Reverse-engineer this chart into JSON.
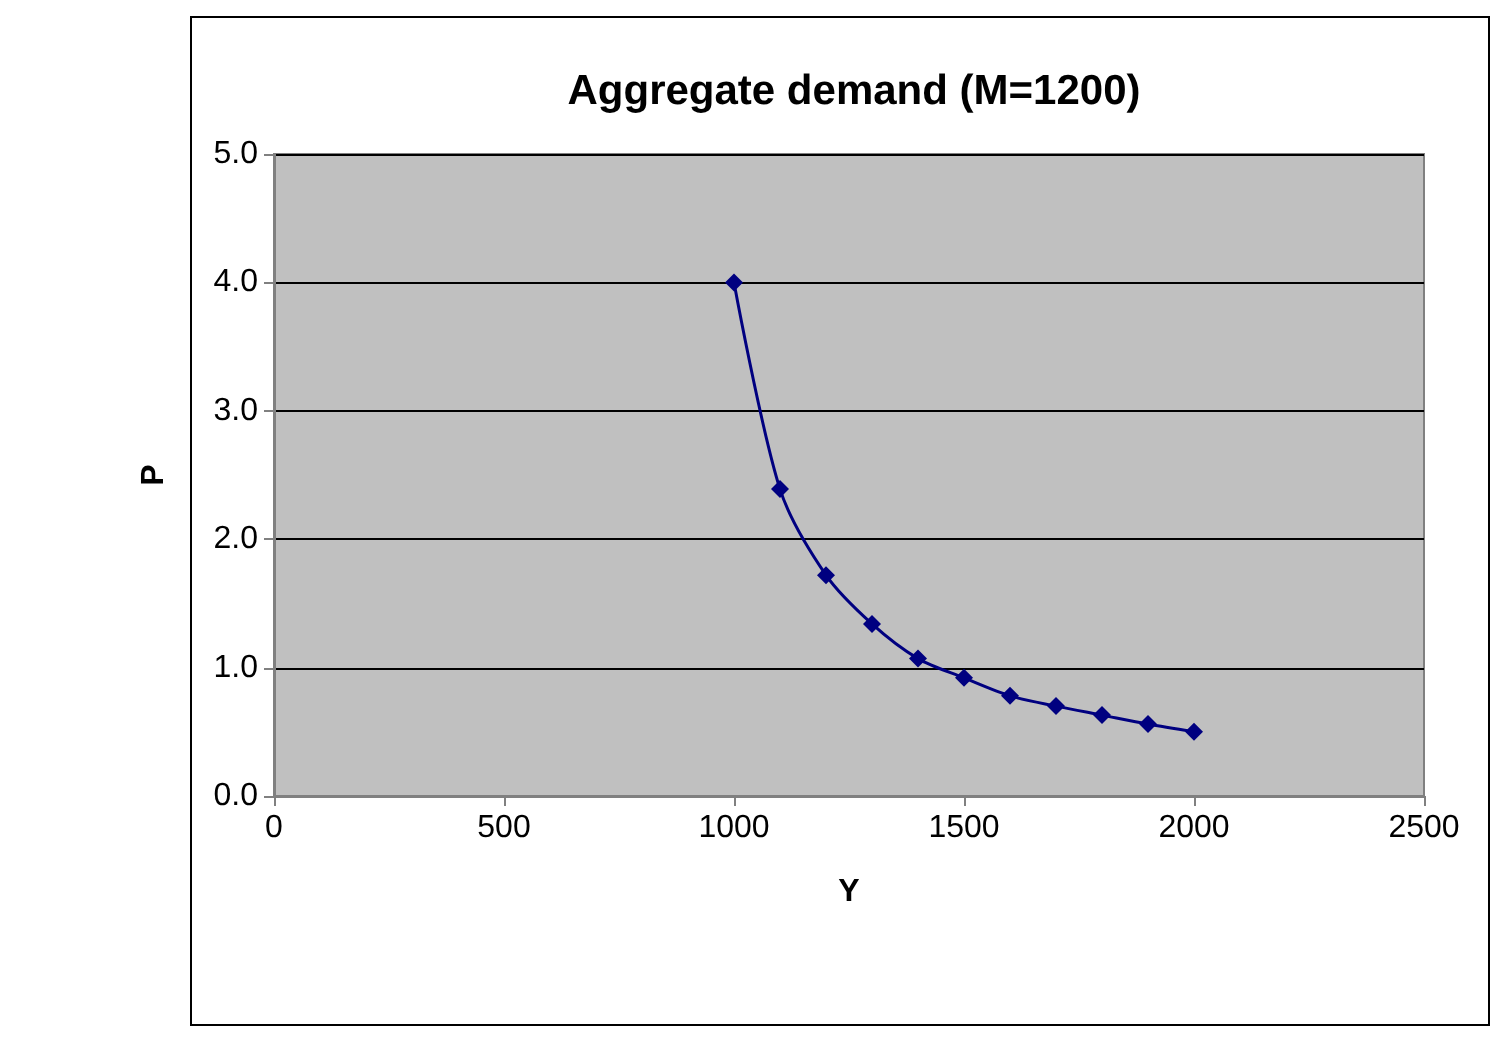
{
  "chart_data": {
    "type": "line",
    "title": "Aggregate demand (M=1200)",
    "xlabel": "Y",
    "ylabel": "P",
    "x": [
      1000,
      1100,
      1200,
      1300,
      1400,
      1500,
      1600,
      1700,
      1800,
      1900,
      2000
    ],
    "series": [
      {
        "color": "#000080",
        "values": [
          4.0,
          2.39,
          1.72,
          1.34,
          1.07,
          0.92,
          0.78,
          0.7,
          0.63,
          0.56,
          0.5
        ]
      }
    ],
    "xlim": [
      0,
      2500
    ],
    "xticks": [
      0,
      500,
      1000,
      1500,
      2000,
      2500
    ],
    "ylim": [
      0,
      5
    ],
    "yticks": [
      {
        "value": 0,
        "label": "0.0"
      },
      {
        "value": 1,
        "label": "1.0"
      },
      {
        "value": 2,
        "label": "2.0"
      },
      {
        "value": 3,
        "label": "3.0"
      },
      {
        "value": 4,
        "label": "4.0"
      },
      {
        "value": 5,
        "label": "5.0"
      }
    ],
    "grid": "y",
    "marker": "diamond",
    "line_style": "solid",
    "legend": false
  }
}
